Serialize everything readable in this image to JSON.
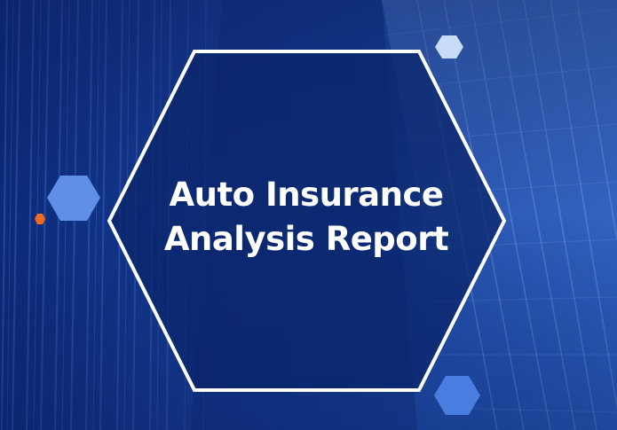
{
  "slide": {
    "title_line_1": "Auto Insurance",
    "title_line_2": "Analysis Report"
  },
  "colors": {
    "background_dark": "#0a2466",
    "background_light": "#3a6fd0",
    "hexagon_outline": "#ffffff",
    "hexagon_fill": "#0d2a6f",
    "accent_hex_blue": "#5f8fe6",
    "accent_hex_light": "#c9dcf7",
    "accent_hex_orange": "#f26b1d",
    "title_text": "#ffffff"
  },
  "icons": [
    "hexagon-frame",
    "hexagon-decoration"
  ]
}
